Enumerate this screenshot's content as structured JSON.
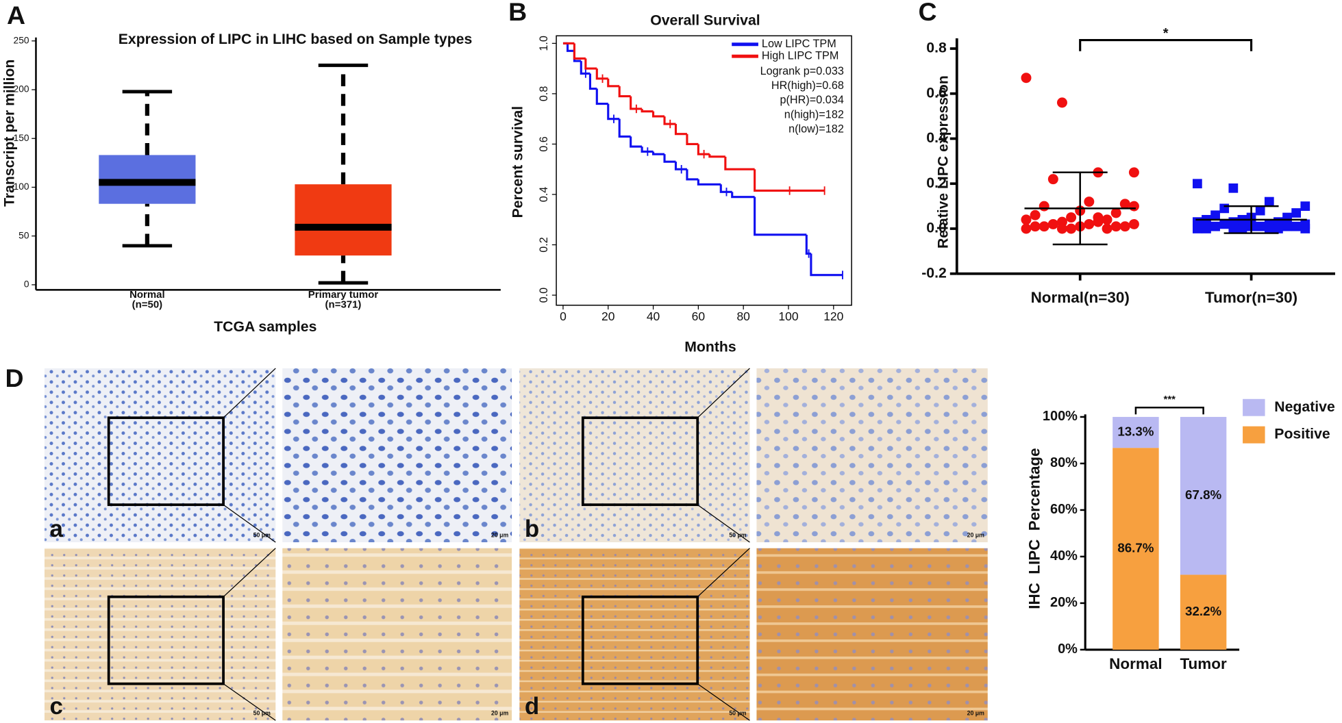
{
  "panels": [
    "A",
    "B",
    "C",
    "D"
  ],
  "ihc": {
    "labels": [
      "a",
      "b",
      "c",
      "d"
    ],
    "scale_bars": [
      "50 μm",
      "20 μm",
      "50 μm",
      "20 μm",
      "50 μm",
      "20 μm",
      "50 μm",
      "20 μm"
    ]
  },
  "chart_data": [
    {
      "type": "box",
      "title": "Expression of LIPC in LIHC based on Sample types",
      "y_label": "Transcript per million",
      "x_label": "TCGA samples",
      "categories": [
        "Normal",
        "Primary tumor"
      ],
      "n_labels": [
        "(n=50)",
        "(n=371)"
      ],
      "colors": [
        "#5b6fe0",
        "#f03a12"
      ],
      "low": [
        40,
        2
      ],
      "q1": [
        83,
        30
      ],
      "median": [
        105,
        59
      ],
      "q3": [
        133,
        103
      ],
      "high": [
        198,
        225
      ],
      "ylim": [
        0,
        250
      ],
      "yticks": [
        0,
        50,
        100,
        150,
        200,
        250
      ]
    },
    {
      "type": "line",
      "drawstyle": "steps-post",
      "title": "Overall Survival",
      "x_label": "Months",
      "y_label": "Percent survival",
      "series": [
        {
          "name": "Low LIPC TPM",
          "color": "#1010f0",
          "x": [
            0,
            2,
            5,
            8,
            12,
            15,
            20,
            25,
            30,
            35,
            40,
            45,
            50,
            55,
            60,
            70,
            75,
            85,
            108,
            110,
            124
          ],
          "values": [
            1.0,
            0.97,
            0.93,
            0.88,
            0.82,
            0.76,
            0.7,
            0.63,
            0.59,
            0.57,
            0.56,
            0.53,
            0.5,
            0.46,
            0.44,
            0.41,
            0.39,
            0.24,
            0.165,
            0.08,
            0.08
          ]
        },
        {
          "name": "High LIPC TPM",
          "color": "#f01010",
          "x": [
            0,
            5,
            10,
            15,
            20,
            25,
            30,
            35,
            40,
            45,
            50,
            55,
            60,
            65,
            72,
            85,
            116
          ],
          "values": [
            1.0,
            0.94,
            0.9,
            0.86,
            0.83,
            0.79,
            0.74,
            0.73,
            0.71,
            0.68,
            0.64,
            0.6,
            0.56,
            0.55,
            0.5,
            0.415,
            0.415
          ]
        }
      ],
      "annotations": [
        "Logrank p=0.033",
        "HR(high)=0.68",
        "p(HR)=0.034",
        "n(high)=182",
        "n(low)=182"
      ],
      "xlim": [
        -3,
        128
      ],
      "xticks": [
        0,
        20,
        40,
        60,
        80,
        100,
        120
      ],
      "ylim": [
        -0.04,
        1.03
      ],
      "yticks": [
        {
          "value": 0,
          "label": "0.0"
        },
        0.2,
        0.4,
        0.6,
        0.8,
        {
          "value": 1,
          "label": "1.0"
        }
      ]
    },
    {
      "type": "scatter",
      "y_label": "Relative LIPC expression",
      "categories": [
        "Normal(n=30)",
        "Tumor(n=30)"
      ],
      "annotation": "*",
      "series": [
        {
          "color": "#f01010",
          "mean": 0.09,
          "sd": 0.16,
          "values": [
            0.67,
            0.56,
            0.25,
            0.25,
            0.22,
            0.12,
            0.11,
            0.1,
            0.08,
            0.07,
            0.06,
            0.05,
            0.04,
            0.04,
            0.03,
            0.03,
            0.02,
            0.02,
            0.02,
            0.01,
            0.01,
            0.01,
            0.01,
            0.01,
            0.0,
            0.0,
            0.0,
            0.0,
            0.05,
            0.1
          ]
        },
        {
          "color": "#1010f0",
          "mean": 0.04,
          "sd": 0.06,
          "values": [
            0.2,
            0.18,
            0.12,
            0.1,
            0.09,
            0.08,
            0.07,
            0.06,
            0.05,
            0.05,
            0.04,
            0.04,
            0.03,
            0.03,
            0.03,
            0.02,
            0.02,
            0.02,
            0.01,
            0.01,
            0.01,
            0.01,
            0.01,
            0.0,
            0.0,
            0.0,
            0.0,
            0.0,
            0.0,
            0.0
          ]
        }
      ],
      "ylim": [
        -0.2,
        0.8
      ],
      "yticks": [
        -0.2,
        {
          "value": 0,
          "label": "0.0"
        },
        0.2,
        0.4,
        0.6,
        0.8
      ]
    },
    {
      "type": "stacked_bar",
      "y_label": "IHC  LIPC  Percentage",
      "annotation": "***",
      "categories": [
        "Normal",
        "Tumor"
      ],
      "series": [
        {
          "name": "Positive",
          "color": "#f7a03f",
          "values": [
            86.7,
            32.2
          ],
          "value_labels": [
            "86.7%",
            "32.2%"
          ]
        },
        {
          "name": "Negative",
          "color": "#b9b9f2",
          "values": [
            13.3,
            67.8
          ],
          "value_labels": [
            "13.3%",
            "67.8%"
          ]
        }
      ],
      "ylim": [
        0,
        100
      ],
      "yticks": [
        {
          "value": 0,
          "label": "0%"
        },
        {
          "value": 20,
          "label": "20%"
        },
        {
          "value": 40,
          "label": "40%"
        },
        {
          "value": 60,
          "label": "60%"
        },
        {
          "value": 80,
          "label": "80%"
        },
        {
          "value": 100,
          "label": "100%"
        }
      ]
    }
  ]
}
